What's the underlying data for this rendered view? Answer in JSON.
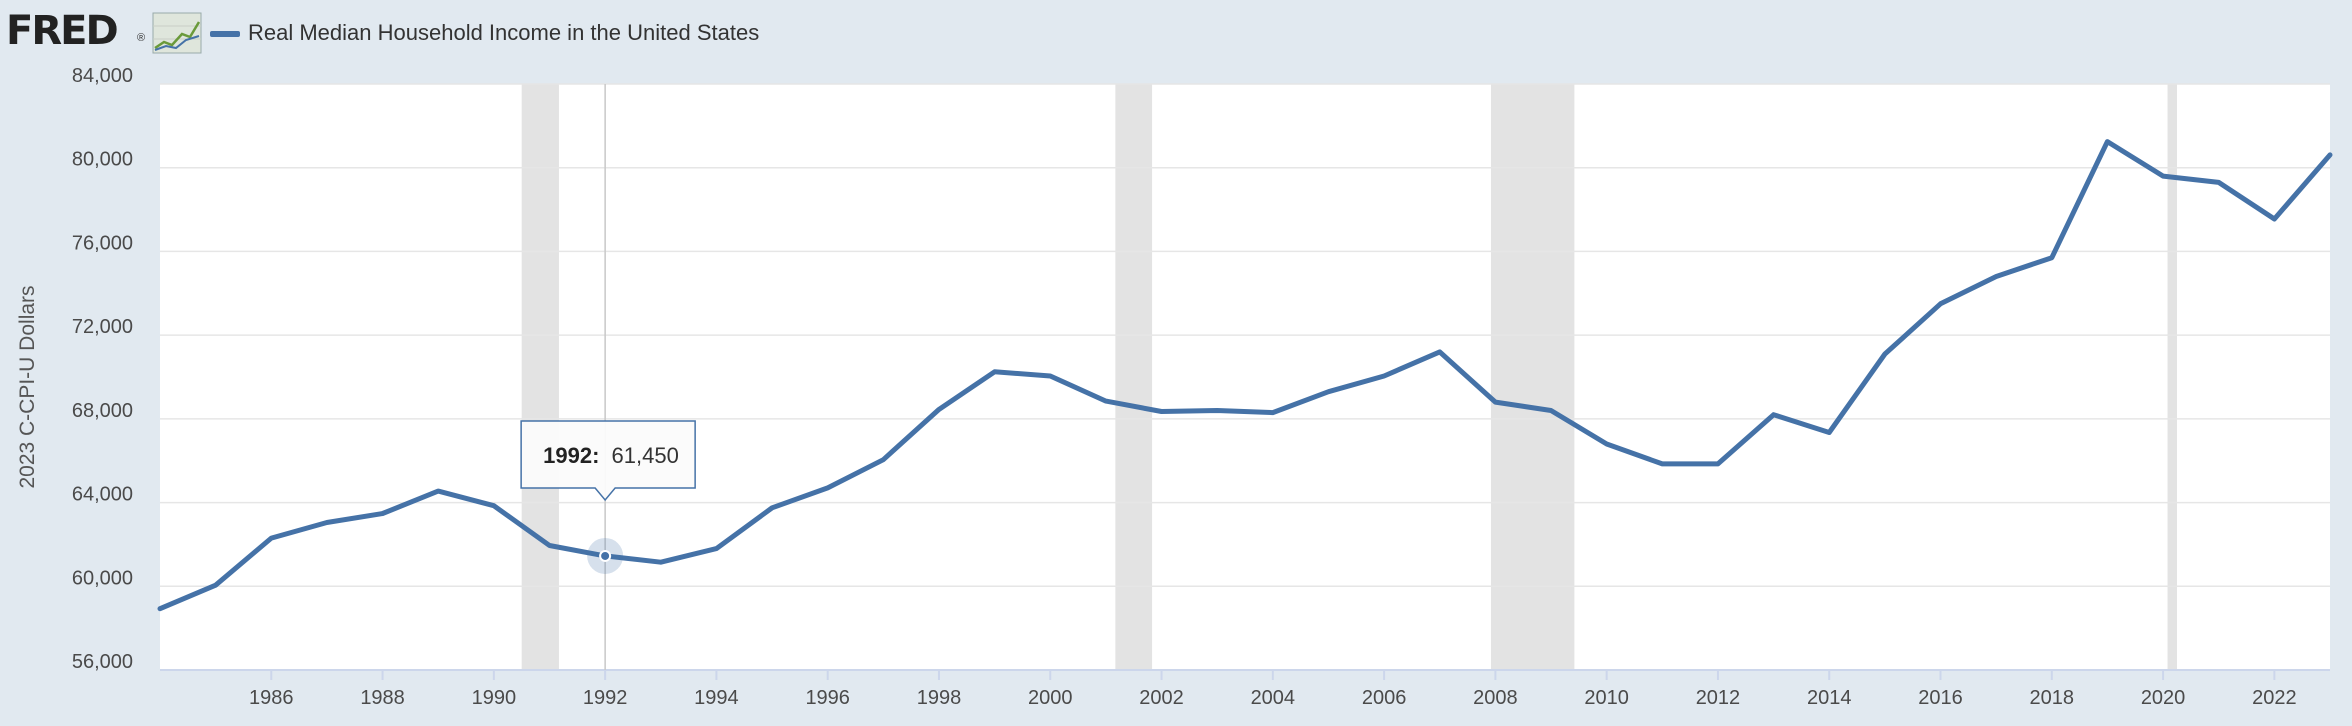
{
  "header": {
    "logo_text": "FRED",
    "logo_reg": "®",
    "legend_label": "Real Median Household Income in the United States",
    "series_color": "#4572a7"
  },
  "chart_data": {
    "type": "line",
    "title": "Real Median Household Income in the United States",
    "xlabel": "",
    "ylabel": "2023 C-CPI-U Dollars",
    "xlim": [
      1984,
      2023
    ],
    "ylim": [
      56000,
      84000
    ],
    "y_ticks": [
      56000,
      60000,
      64000,
      68000,
      72000,
      76000,
      80000,
      84000
    ],
    "y_tick_labels": [
      "56,000",
      "60,000",
      "64,000",
      "68,000",
      "72,000",
      "76,000",
      "80,000",
      "84,000"
    ],
    "x_ticks": [
      1986,
      1988,
      1990,
      1992,
      1994,
      1996,
      1998,
      2000,
      2002,
      2004,
      2006,
      2008,
      2010,
      2012,
      2014,
      2016,
      2018,
      2020,
      2022
    ],
    "x_tick_labels": [
      "1986",
      "1988",
      "1990",
      "1992",
      "1994",
      "1996",
      "1998",
      "2000",
      "2002",
      "2004",
      "2006",
      "2008",
      "2010",
      "2012",
      "2014",
      "2016",
      "2018",
      "2020",
      "2022"
    ],
    "recessions": [
      [
        1990.5,
        1991.17
      ],
      [
        2001.17,
        2001.83
      ],
      [
        2007.92,
        2009.42
      ],
      [
        2020.08,
        2020.25
      ]
    ],
    "series": [
      {
        "name": "Real Median Household Income in the United States",
        "color": "#4572a7",
        "x": [
          1984,
          1985,
          1986,
          1987,
          1988,
          1989,
          1990,
          1991,
          1992,
          1993,
          1994,
          1995,
          1996,
          1997,
          1998,
          1999,
          2000,
          2001,
          2002,
          2003,
          2004,
          2005,
          2006,
          2007,
          2008,
          2009,
          2010,
          2011,
          2012,
          2013,
          2014,
          2015,
          2016,
          2017,
          2018,
          2019,
          2020,
          2021,
          2022,
          2023
        ],
        "values": [
          58930,
          60050,
          62300,
          63050,
          63480,
          64550,
          63850,
          61950,
          61450,
          61150,
          61800,
          63750,
          64700,
          66050,
          68450,
          70250,
          70050,
          68850,
          68350,
          68400,
          68300,
          69300,
          70050,
          71200,
          68800,
          68400,
          66800,
          65850,
          65850,
          68200,
          67350,
          71100,
          73500,
          74800,
          75700,
          81250,
          79600,
          79300,
          77550,
          80610
        ]
      }
    ],
    "tooltip": {
      "label": "1992:",
      "value": "61,450",
      "x": 1992
    }
  }
}
